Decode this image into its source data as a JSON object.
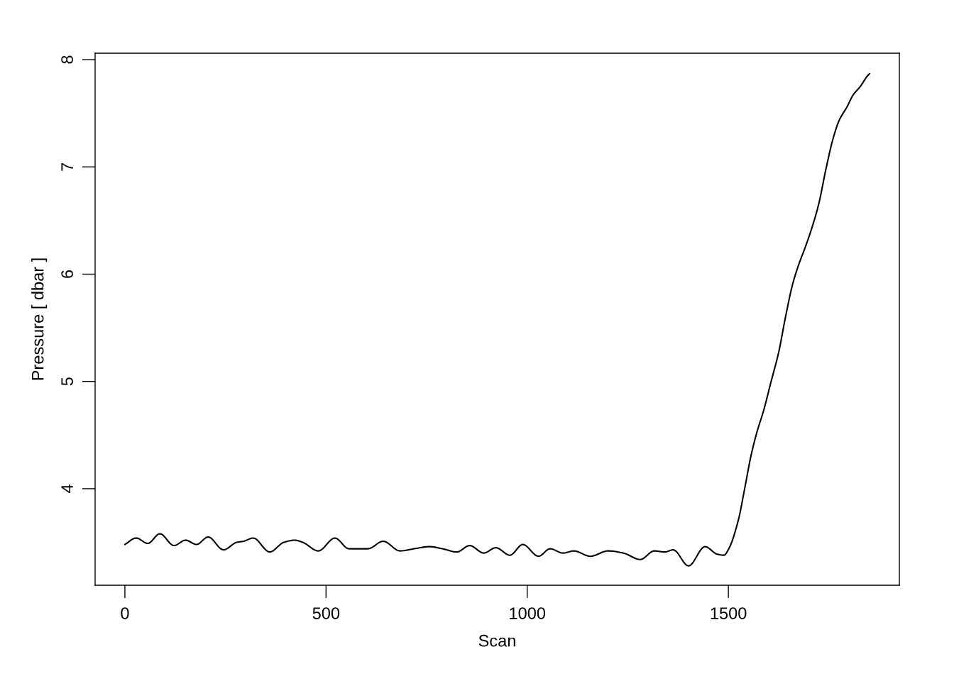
{
  "chart_data": {
    "type": "line",
    "xlabel": "Scan",
    "ylabel": "Pressure [ dbar ]",
    "x": [
      0,
      28,
      57,
      87,
      122,
      151,
      178,
      207,
      245,
      278,
      295,
      319,
      360,
      395,
      422,
      442,
      481,
      522,
      557,
      604,
      642,
      684,
      719,
      757,
      789,
      825,
      857,
      892,
      922,
      957,
      989,
      1028,
      1057,
      1089,
      1116,
      1157,
      1201,
      1239,
      1281,
      1316,
      1342,
      1363,
      1401,
      1442,
      1472,
      1489,
      1501,
      1525,
      1540,
      1557,
      1572,
      1587,
      1607,
      1625,
      1642,
      1660,
      1675,
      1692,
      1710,
      1725,
      1742,
      1760,
      1775,
      1795,
      1810,
      1828,
      1846,
      1851
    ],
    "series": [
      {
        "color": "#000000",
        "values": [
          3.48,
          3.54,
          3.49,
          3.58,
          3.47,
          3.52,
          3.48,
          3.55,
          3.43,
          3.5,
          3.51,
          3.54,
          3.41,
          3.5,
          3.52,
          3.5,
          3.42,
          3.54,
          3.44,
          3.44,
          3.51,
          3.42,
          3.44,
          3.46,
          3.44,
          3.41,
          3.47,
          3.4,
          3.45,
          3.38,
          3.48,
          3.37,
          3.44,
          3.4,
          3.42,
          3.37,
          3.42,
          3.4,
          3.34,
          3.42,
          3.41,
          3.43,
          3.28,
          3.46,
          3.39,
          3.38,
          3.44,
          3.71,
          3.99,
          4.32,
          4.54,
          4.72,
          5.01,
          5.27,
          5.6,
          5.91,
          6.09,
          6.26,
          6.46,
          6.66,
          6.97,
          7.26,
          7.43,
          7.56,
          7.67,
          7.75,
          7.85,
          7.87
        ]
      }
    ],
    "xlim": [
      -74,
      1925
    ],
    "ylim": [
      3.1,
      8.06
    ],
    "xticks": [
      0,
      500,
      1000,
      1500
    ],
    "yticks": [
      4,
      5,
      6,
      7,
      8
    ],
    "grid": false,
    "line_style": "solid",
    "marker": "none"
  }
}
